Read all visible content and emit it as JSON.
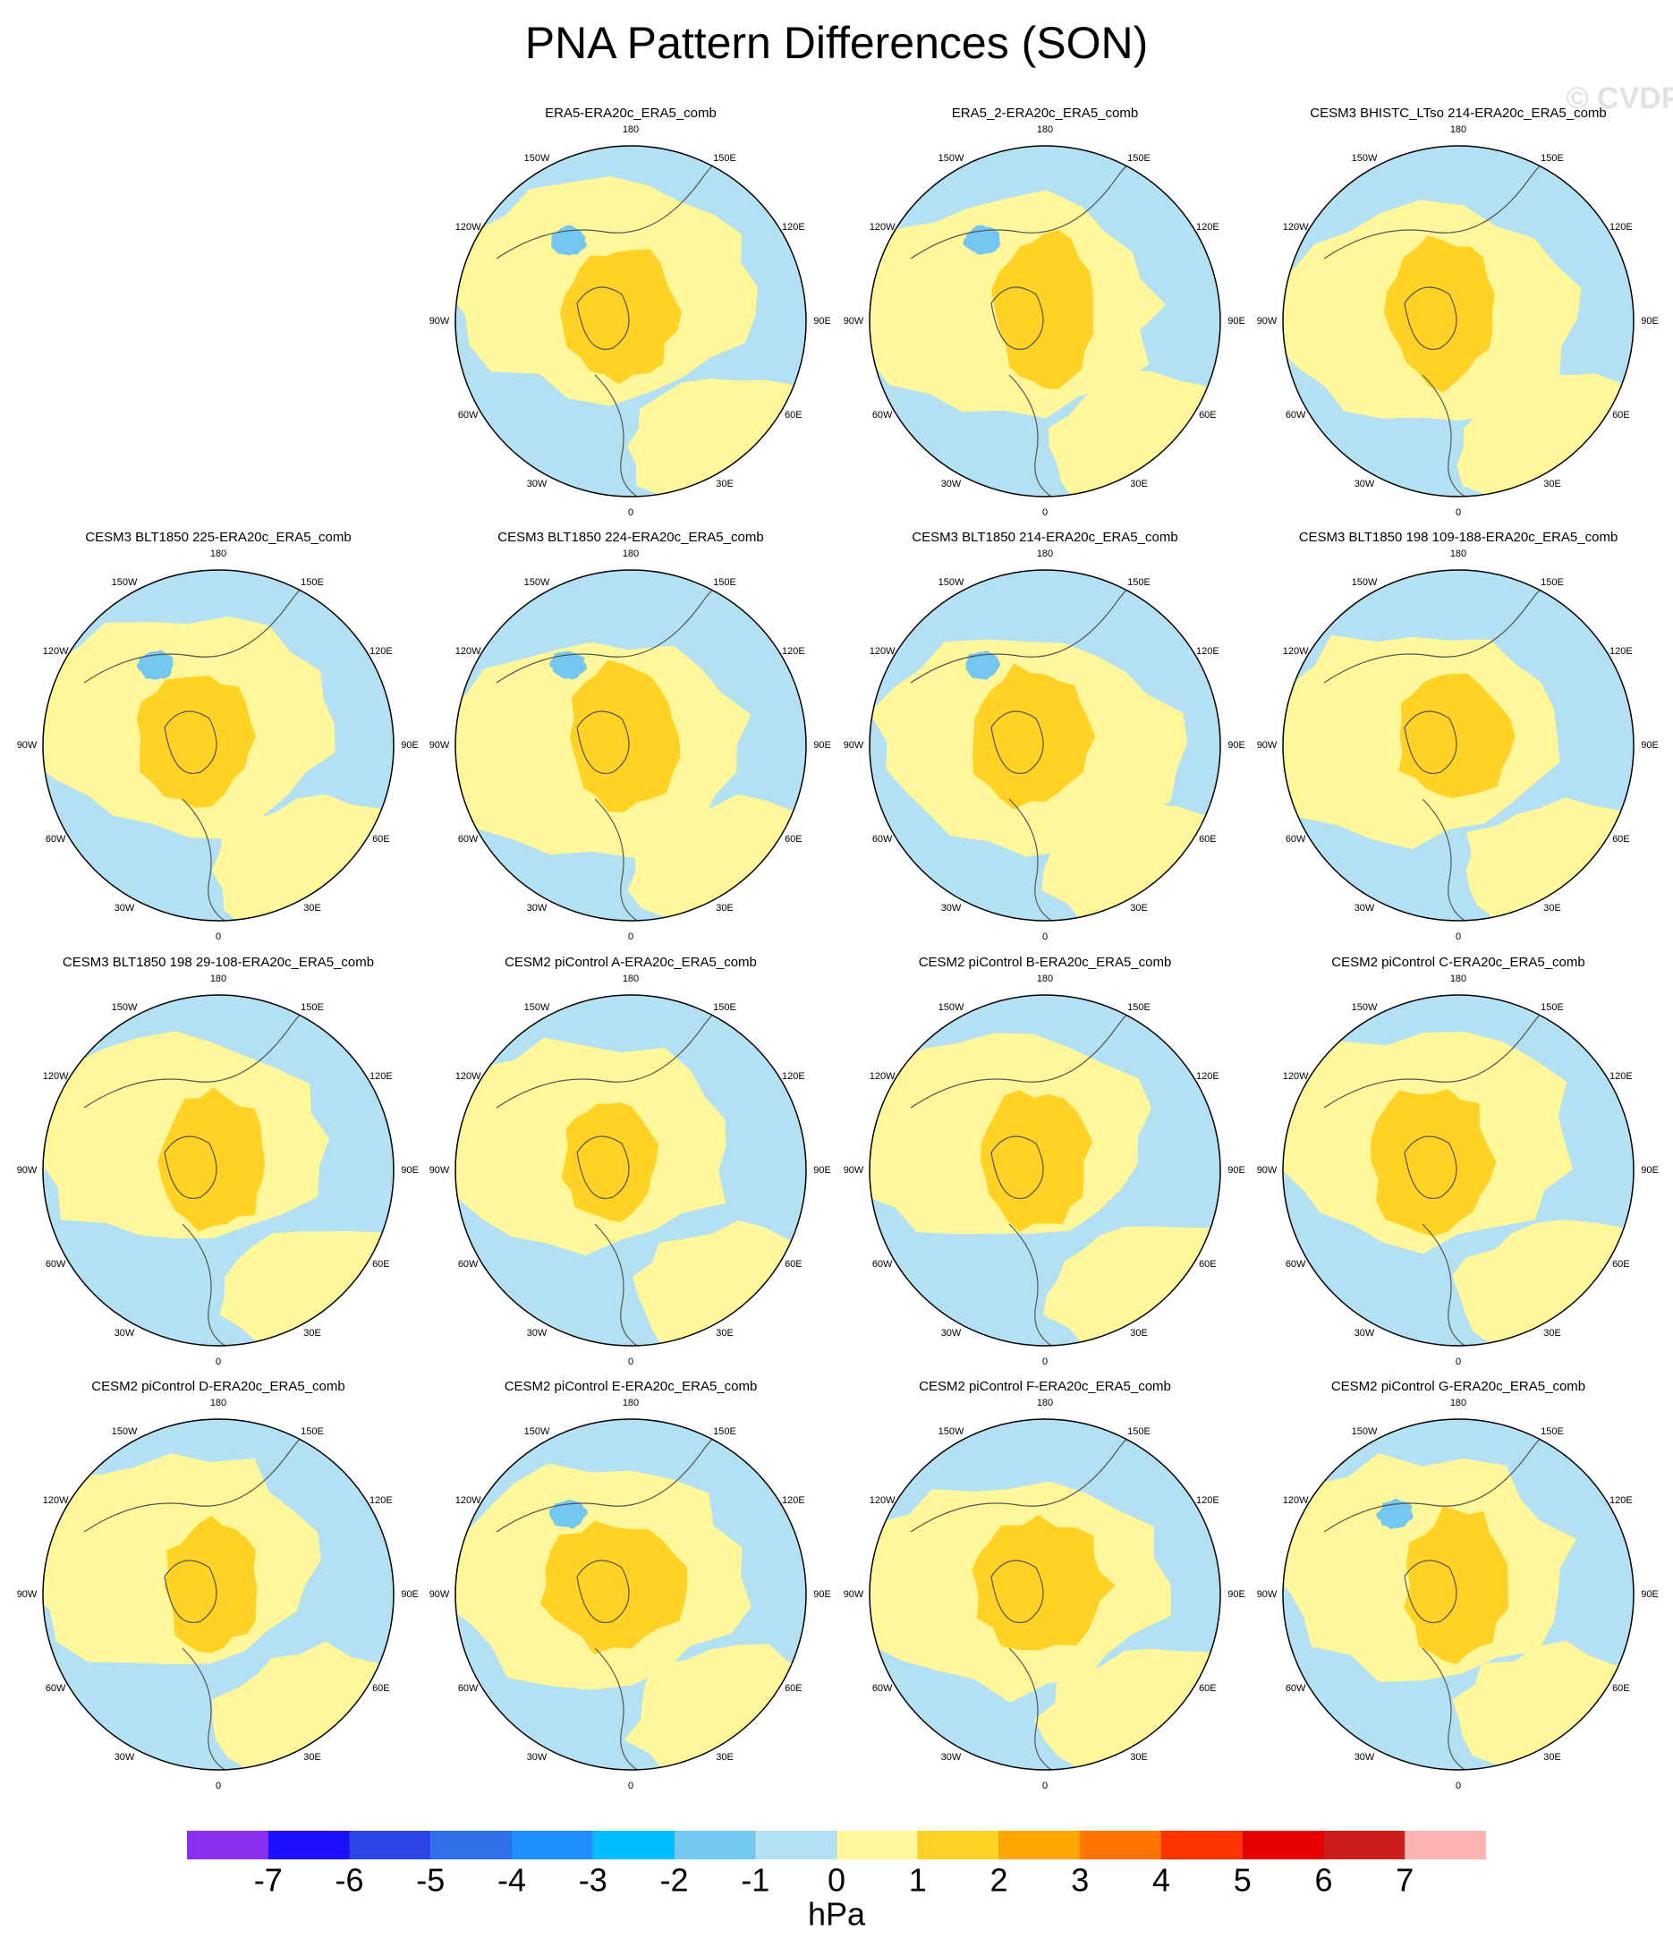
{
  "chart_data": {
    "type": "polar-map-panels",
    "title": "PNA Pattern Differences (SON)",
    "watermark": "© CVDP",
    "lon_labels": [
      "0",
      "30E",
      "60E",
      "90E",
      "120E",
      "150E",
      "180",
      "150W",
      "120W",
      "90W",
      "60W",
      "30W"
    ],
    "panels": [
      {
        "title": "ERA5-ERA20c_ERA5_comb"
      },
      {
        "title": "ERA5_2-ERA20c_ERA5_comb"
      },
      {
        "title": "CESM3 BHISTC_LTso 214-ERA20c_ERA5_comb"
      },
      {
        "title": "CESM3 BLT1850 225-ERA20c_ERA5_comb"
      },
      {
        "title": "CESM3 BLT1850 224-ERA20c_ERA5_comb"
      },
      {
        "title": "CESM3 BLT1850 214-ERA20c_ERA5_comb"
      },
      {
        "title": "CESM3 BLT1850 198 109-188-ERA20c_ERA5_comb"
      },
      {
        "title": "CESM3 BLT1850 198 29-108-ERA20c_ERA5_comb"
      },
      {
        "title": "CESM2 piControl A-ERA20c_ERA5_comb"
      },
      {
        "title": "CESM2 piControl B-ERA20c_ERA5_comb"
      },
      {
        "title": "CESM2 piControl C-ERA20c_ERA5_comb"
      },
      {
        "title": "CESM2 piControl D-ERA20c_ERA5_comb"
      },
      {
        "title": "CESM2 piControl E-ERA20c_ERA5_comb"
      },
      {
        "title": "CESM2 piControl F-ERA20c_ERA5_comb"
      },
      {
        "title": "CESM2 piControl G-ERA20c_ERA5_comb"
      }
    ],
    "colorbar": {
      "levels": [
        -7,
        -6,
        -5,
        -4,
        -3,
        -2,
        -1,
        0,
        1,
        2,
        3,
        4,
        5,
        6,
        7
      ],
      "colors": [
        "#8b2ff0",
        "#1e10ff",
        "#2c46e6",
        "#2f6fe8",
        "#1e90ff",
        "#00bfff",
        "#73c7f0",
        "#b3e0f2",
        "#fff799",
        "#ffd225",
        "#ffa500",
        "#ff7300",
        "#ff3300",
        "#e60000",
        "#cc1c1c",
        "#ffb3b3"
      ],
      "units": "hPa"
    }
  }
}
